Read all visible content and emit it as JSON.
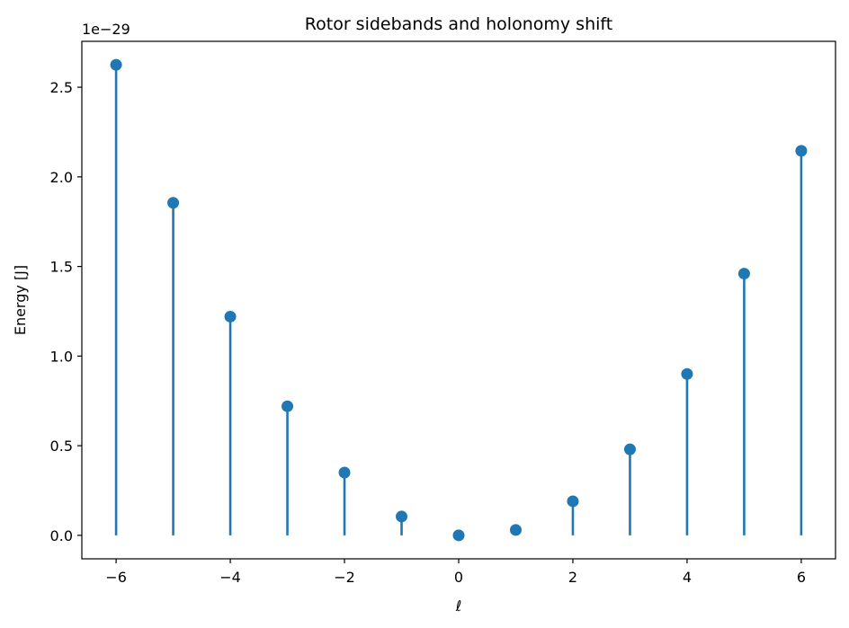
{
  "chart_data": {
    "type": "stem",
    "title": "Rotor sidebands and holonomy shift",
    "xlabel": "ℓ",
    "ylabel": "Energy [J]",
    "y_offset_label": "1e−29",
    "y_scale": 1e-29,
    "x": [
      -6,
      -5,
      -4,
      -3,
      -2,
      -1,
      0,
      1,
      2,
      3,
      4,
      5,
      6
    ],
    "y": [
      2.625,
      1.855,
      1.22,
      0.72,
      0.35,
      0.105,
      0.0,
      0.03,
      0.19,
      0.48,
      0.9,
      1.46,
      2.145
    ],
    "xlim": [
      -6.6,
      6.6
    ],
    "ylim": [
      -0.131,
      2.756
    ],
    "xticks": [
      -6,
      -4,
      -2,
      0,
      2,
      4,
      6
    ],
    "xtick_labels": [
      "−6",
      "−4",
      "−2",
      "0",
      "2",
      "4",
      "6"
    ],
    "yticks": [
      0.0,
      0.5,
      1.0,
      1.5,
      2.0,
      2.5
    ],
    "ytick_labels": [
      "0.0",
      "0.5",
      "1.0",
      "1.5",
      "2.0",
      "2.5"
    ],
    "grid": false,
    "legend": "none",
    "colors": {
      "series": "#1f77b4",
      "axes": "#000000"
    }
  }
}
